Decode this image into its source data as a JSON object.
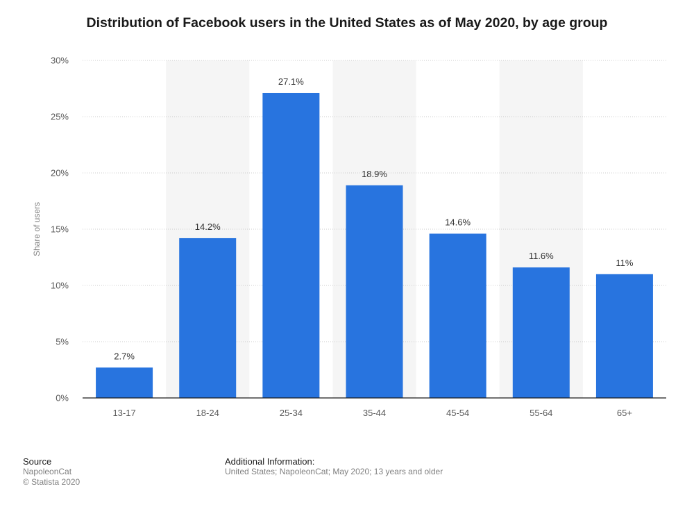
{
  "chart_data": {
    "type": "bar",
    "title": "Distribution of Facebook users in the United States as of May 2020, by age group",
    "categories": [
      "13-17",
      "18-24",
      "25-34",
      "35-44",
      "45-54",
      "55-64",
      "65+"
    ],
    "values": [
      2.7,
      14.2,
      27.1,
      18.9,
      14.6,
      11.6,
      11
    ],
    "data_labels": [
      "2.7%",
      "14.2%",
      "27.1%",
      "18.9%",
      "14.6%",
      "11.6%",
      "11%"
    ],
    "ylabel": "Share of users",
    "xlabel": "",
    "ylim": [
      0,
      30
    ],
    "yticks": [
      0,
      5,
      10,
      15,
      20,
      25,
      30
    ],
    "ytick_labels": [
      "0%",
      "5%",
      "10%",
      "15%",
      "20%",
      "25%",
      "30%"
    ],
    "grid": true,
    "colors": {
      "bar": "#2874df",
      "band": "#f5f5f5",
      "grid": "#cccccc",
      "axis": "#1a1a1a"
    }
  },
  "footer": {
    "source_heading": "Source",
    "source_lines": [
      "NapoleonCat",
      "© Statista 2020"
    ],
    "info_heading": "Additional Information:",
    "info_text": "United States; NapoleonCat; May 2020; 13 years and older"
  }
}
